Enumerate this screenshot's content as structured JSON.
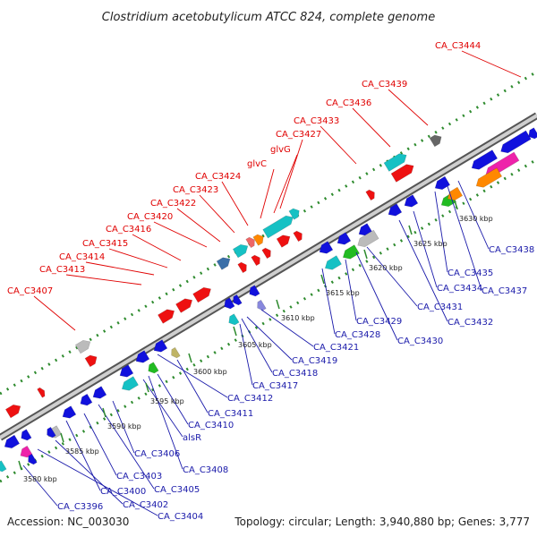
{
  "title": "Clostridium acetobutylicum ATCC 824, complete genome",
  "footer": {
    "accession": "Accession: NC_003030",
    "summary": "Topology: circular; Length: 3,940,880 bp; Genes: 3,777"
  },
  "colors": {
    "backbone": "#999999",
    "forward_label": "#e00000",
    "reverse_label": "#1a1aaa",
    "dotted_guide": "#2e8b2e"
  },
  "ticks": [
    "3580 kbp",
    "3585 kbp",
    "3590 kbp",
    "3595 kbp",
    "3600 kbp",
    "3605 kbp",
    "3610 kbp",
    "3615 kbp",
    "3620 kbp",
    "3625 kbp",
    "3630 kbp"
  ],
  "forward_labels": [
    "CA_C3407",
    "CA_C3413",
    "CA_C3414",
    "CA_C3415",
    "CA_C3416",
    "CA_C3420",
    "CA_C3422",
    "CA_C3423",
    "CA_C3424",
    "glvC",
    "glvG",
    "CA_C3427",
    "CA_C3433",
    "CA_C3436",
    "CA_C3439",
    "CA_C3444"
  ],
  "reverse_labels": [
    "CA_C3396",
    "CA_C3400",
    "CA_C3402",
    "CA_C3403",
    "CA_C3404",
    "CA_C3405",
    "CA_C3406",
    "CA_C3408",
    "alsR",
    "CA_C3410",
    "CA_C3411",
    "CA_C3412",
    "CA_C3417",
    "CA_C3418",
    "CA_C3419",
    "CA_C3421",
    "CA_C3428",
    "CA_C3429",
    "CA_C3430",
    "CA_C3431",
    "CA_C3432",
    "CA_C3434",
    "CA_C3435",
    "CA_C3437",
    "CA_C3438"
  ]
}
